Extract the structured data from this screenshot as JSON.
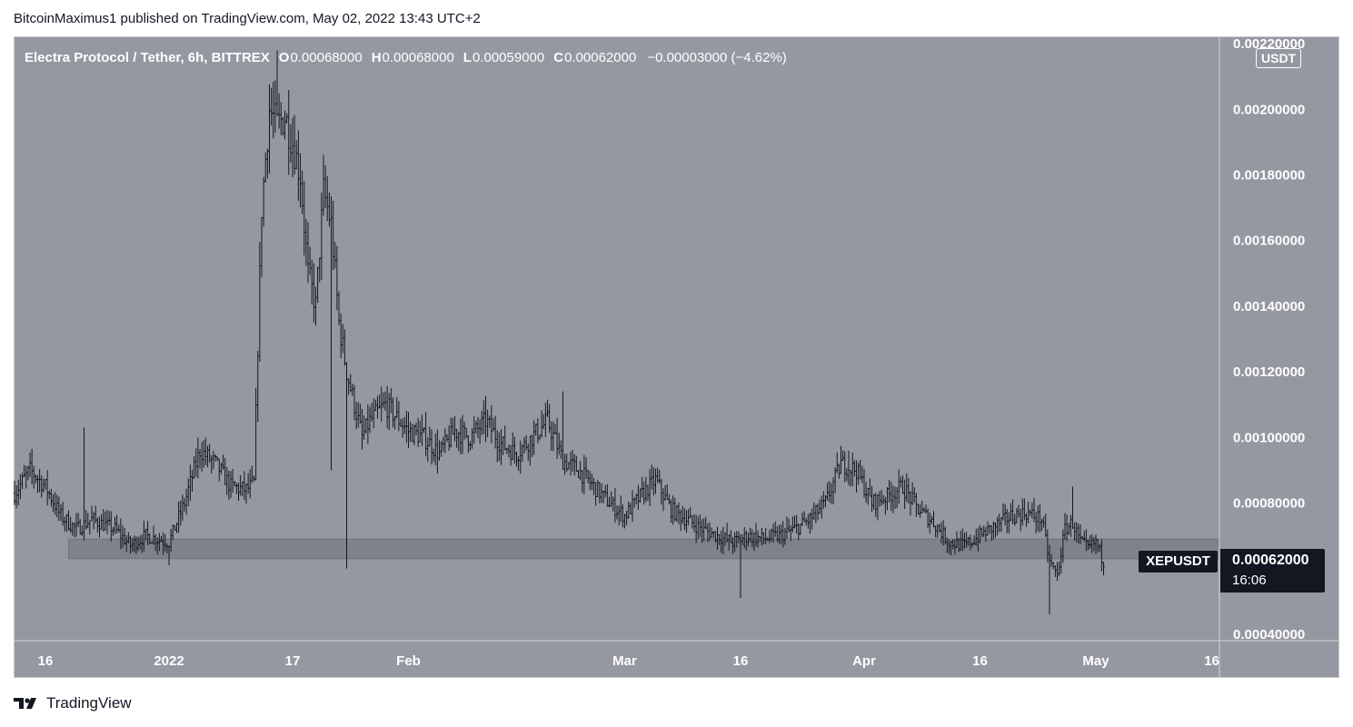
{
  "header": {
    "published_by": "BitcoinMaximus1 published on TradingView.com, May 02, 2022 13:43 UTC+2"
  },
  "legend": {
    "title": "Electra Protocol / Tether, 6h, BITTREX",
    "open_label": "O",
    "open_value": "0.00068000",
    "high_label": "H",
    "high_value": "0.00068000",
    "low_label": "L",
    "low_value": "0.00059000",
    "close_label": "C",
    "close_value": "0.00062000",
    "change": "−0.00003000 (−4.62%)"
  },
  "currency_badge": "USDT",
  "last_price": {
    "symbol": "XEPUSDT",
    "price": "0.00062000",
    "countdown": "16:06"
  },
  "footer": {
    "brand": "TradingView"
  },
  "colors": {
    "background": "#9598a1",
    "candle": "#131722",
    "support_zone": "#7f828b",
    "axis_text": "#ffffff",
    "badge": "#131722"
  },
  "chart_data": {
    "type": "ohlc",
    "interval": "6h",
    "exchange": "BITTREX",
    "ylim": [
      0.00038,
      0.00222
    ],
    "y_ticks": [
      "0.00040000",
      "0.00060000",
      "0.00080000",
      "0.00100000",
      "0.00120000",
      "0.00140000",
      "0.00160000",
      "0.00180000",
      "0.00200000",
      "0.00220000"
    ],
    "x_ticks": [
      {
        "label": "16",
        "date": "2021-12-16"
      },
      {
        "label": "2022",
        "date": "2022-01-01"
      },
      {
        "label": "17",
        "date": "2022-01-17"
      },
      {
        "label": "Feb",
        "date": "2022-02-01"
      },
      {
        "label": "Mar",
        "date": "2022-03-01"
      },
      {
        "label": "16",
        "date": "2022-03-16"
      },
      {
        "label": "Apr",
        "date": "2022-04-01"
      },
      {
        "label": "16",
        "date": "2022-04-16"
      },
      {
        "label": "May",
        "date": "2022-05-01"
      },
      {
        "label": "16",
        "date": "2022-05-16"
      }
    ],
    "x_range": [
      "2021-12-12",
      "2022-05-17"
    ],
    "support_zone": {
      "from": "2021-12-19",
      "to": "2022-05-17",
      "low": 0.00063,
      "high": 0.00069
    },
    "close_trajectory": [
      [
        "2021-12-12",
        0.00083
      ],
      [
        "2021-12-14",
        0.0009
      ],
      [
        "2021-12-16",
        0.00085
      ],
      [
        "2021-12-18",
        0.00076
      ],
      [
        "2021-12-20",
        0.00072
      ],
      [
        "2021-12-22",
        0.00075
      ],
      [
        "2021-12-25",
        0.00072
      ],
      [
        "2021-12-27",
        0.00067
      ],
      [
        "2021-12-29",
        0.0007
      ],
      [
        "2022-01-01",
        0.00068
      ],
      [
        "2022-01-03",
        0.0008
      ],
      [
        "2022-01-05",
        0.00096
      ],
      [
        "2022-01-07",
        0.00092
      ],
      [
        "2022-01-09",
        0.00085
      ],
      [
        "2022-01-11",
        0.00084
      ],
      [
        "2022-01-12",
        0.00086
      ],
      [
        "2022-01-13",
        0.0017
      ],
      [
        "2022-01-14",
        0.002
      ],
      [
        "2022-01-15",
        0.00195
      ],
      [
        "2022-01-16",
        0.00198
      ],
      [
        "2022-01-17",
        0.0019
      ],
      [
        "2022-01-18",
        0.0018
      ],
      [
        "2022-01-19",
        0.0015
      ],
      [
        "2022-01-20",
        0.0014
      ],
      [
        "2022-01-21",
        0.00175
      ],
      [
        "2022-01-22",
        0.00165
      ],
      [
        "2022-01-23",
        0.00135
      ],
      [
        "2022-01-24",
        0.0012
      ],
      [
        "2022-01-25",
        0.0011
      ],
      [
        "2022-01-26",
        0.001
      ],
      [
        "2022-01-27",
        0.00105
      ],
      [
        "2022-01-29",
        0.0011
      ],
      [
        "2022-02-01",
        0.00102
      ],
      [
        "2022-02-03",
        0.001
      ],
      [
        "2022-02-05",
        0.00095
      ],
      [
        "2022-02-07",
        0.00102
      ],
      [
        "2022-02-09",
        0.001
      ],
      [
        "2022-02-11",
        0.00105
      ],
      [
        "2022-02-13",
        0.00098
      ],
      [
        "2022-02-15",
        0.00095
      ],
      [
        "2022-02-17",
        0.001
      ],
      [
        "2022-02-19",
        0.00105
      ],
      [
        "2022-02-21",
        0.00093
      ],
      [
        "2022-02-23",
        0.0009
      ],
      [
        "2022-02-25",
        0.00085
      ],
      [
        "2022-02-27",
        0.0008
      ],
      [
        "2022-03-01",
        0.00076
      ],
      [
        "2022-03-03",
        0.00082
      ],
      [
        "2022-03-05",
        0.00087
      ],
      [
        "2022-03-07",
        0.00078
      ],
      [
        "2022-03-09",
        0.00075
      ],
      [
        "2022-03-11",
        0.00072
      ],
      [
        "2022-03-13",
        0.0007
      ],
      [
        "2022-03-15",
        0.00068
      ],
      [
        "2022-03-17",
        0.0007
      ],
      [
        "2022-03-19",
        0.00069
      ],
      [
        "2022-03-21",
        0.0007
      ],
      [
        "2022-03-23",
        0.00072
      ],
      [
        "2022-03-25",
        0.00075
      ],
      [
        "2022-03-27",
        0.0008
      ],
      [
        "2022-03-29",
        0.00092
      ],
      [
        "2022-03-31",
        0.0009
      ],
      [
        "2022-04-02",
        0.0008
      ],
      [
        "2022-04-04",
        0.00082
      ],
      [
        "2022-04-06",
        0.00085
      ],
      [
        "2022-04-08",
        0.00078
      ],
      [
        "2022-04-10",
        0.00074
      ],
      [
        "2022-04-12",
        0.00068
      ],
      [
        "2022-04-14",
        0.00067
      ],
      [
        "2022-04-16",
        0.0007
      ],
      [
        "2022-04-18",
        0.00073
      ],
      [
        "2022-04-20",
        0.00076
      ],
      [
        "2022-04-22",
        0.00077
      ],
      [
        "2022-04-24",
        0.00075
      ],
      [
        "2022-04-25",
        0.00062
      ],
      [
        "2022-04-26",
        0.00058
      ],
      [
        "2022-04-27",
        0.00072
      ],
      [
        "2022-04-28",
        0.00074
      ],
      [
        "2022-04-29",
        0.00068
      ],
      [
        "2022-04-30",
        0.00066
      ],
      [
        "2022-05-01",
        0.00068
      ],
      [
        "2022-05-02",
        0.00062
      ]
    ],
    "spikes": [
      [
        "2021-12-21",
        0.00103,
        "high"
      ],
      [
        "2022-01-01",
        0.00061,
        "low"
      ],
      [
        "2022-01-15",
        0.00218,
        "high"
      ],
      [
        "2022-01-24",
        0.0006,
        "low"
      ],
      [
        "2022-01-22",
        0.0009,
        "low"
      ],
      [
        "2022-02-21",
        0.00114,
        "high"
      ],
      [
        "2022-03-16",
        0.00051,
        "low"
      ],
      [
        "2022-03-30",
        0.00096,
        "high"
      ],
      [
        "2022-04-25",
        0.00046,
        "low"
      ],
      [
        "2022-04-28",
        0.00085,
        "high"
      ],
      [
        "2022-05-02",
        0.00059,
        "low"
      ]
    ]
  }
}
